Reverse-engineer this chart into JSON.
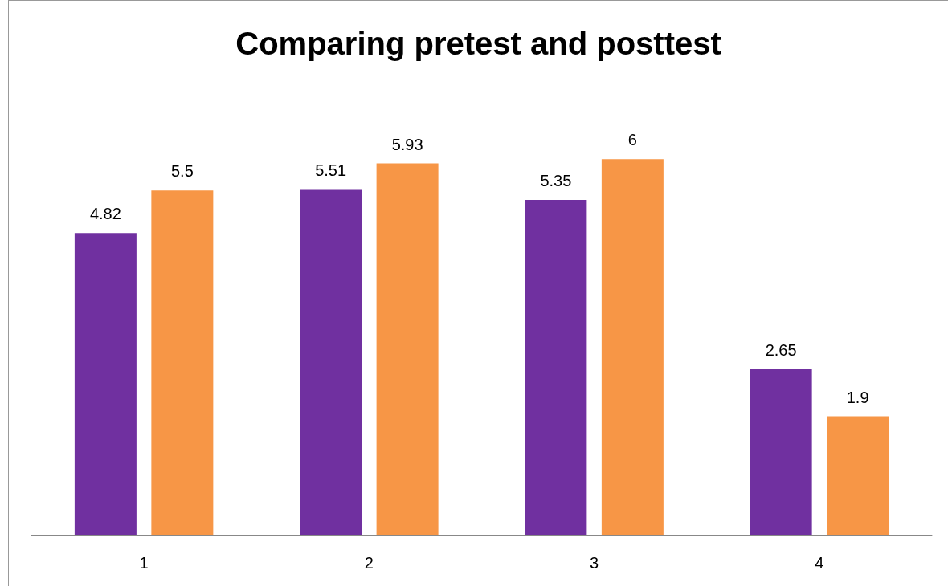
{
  "chart_data": {
    "type": "bar",
    "title": "Comparing pretest and posttest",
    "categories": [
      "1",
      "2",
      "3",
      "4"
    ],
    "series": [
      {
        "color": "#7030a0",
        "values": [
          4.82,
          5.51,
          5.35,
          2.65
        ]
      },
      {
        "color": "#f79646",
        "values": [
          5.5,
          5.93,
          6,
          1.9
        ]
      }
    ],
    "data_labels": true
  }
}
